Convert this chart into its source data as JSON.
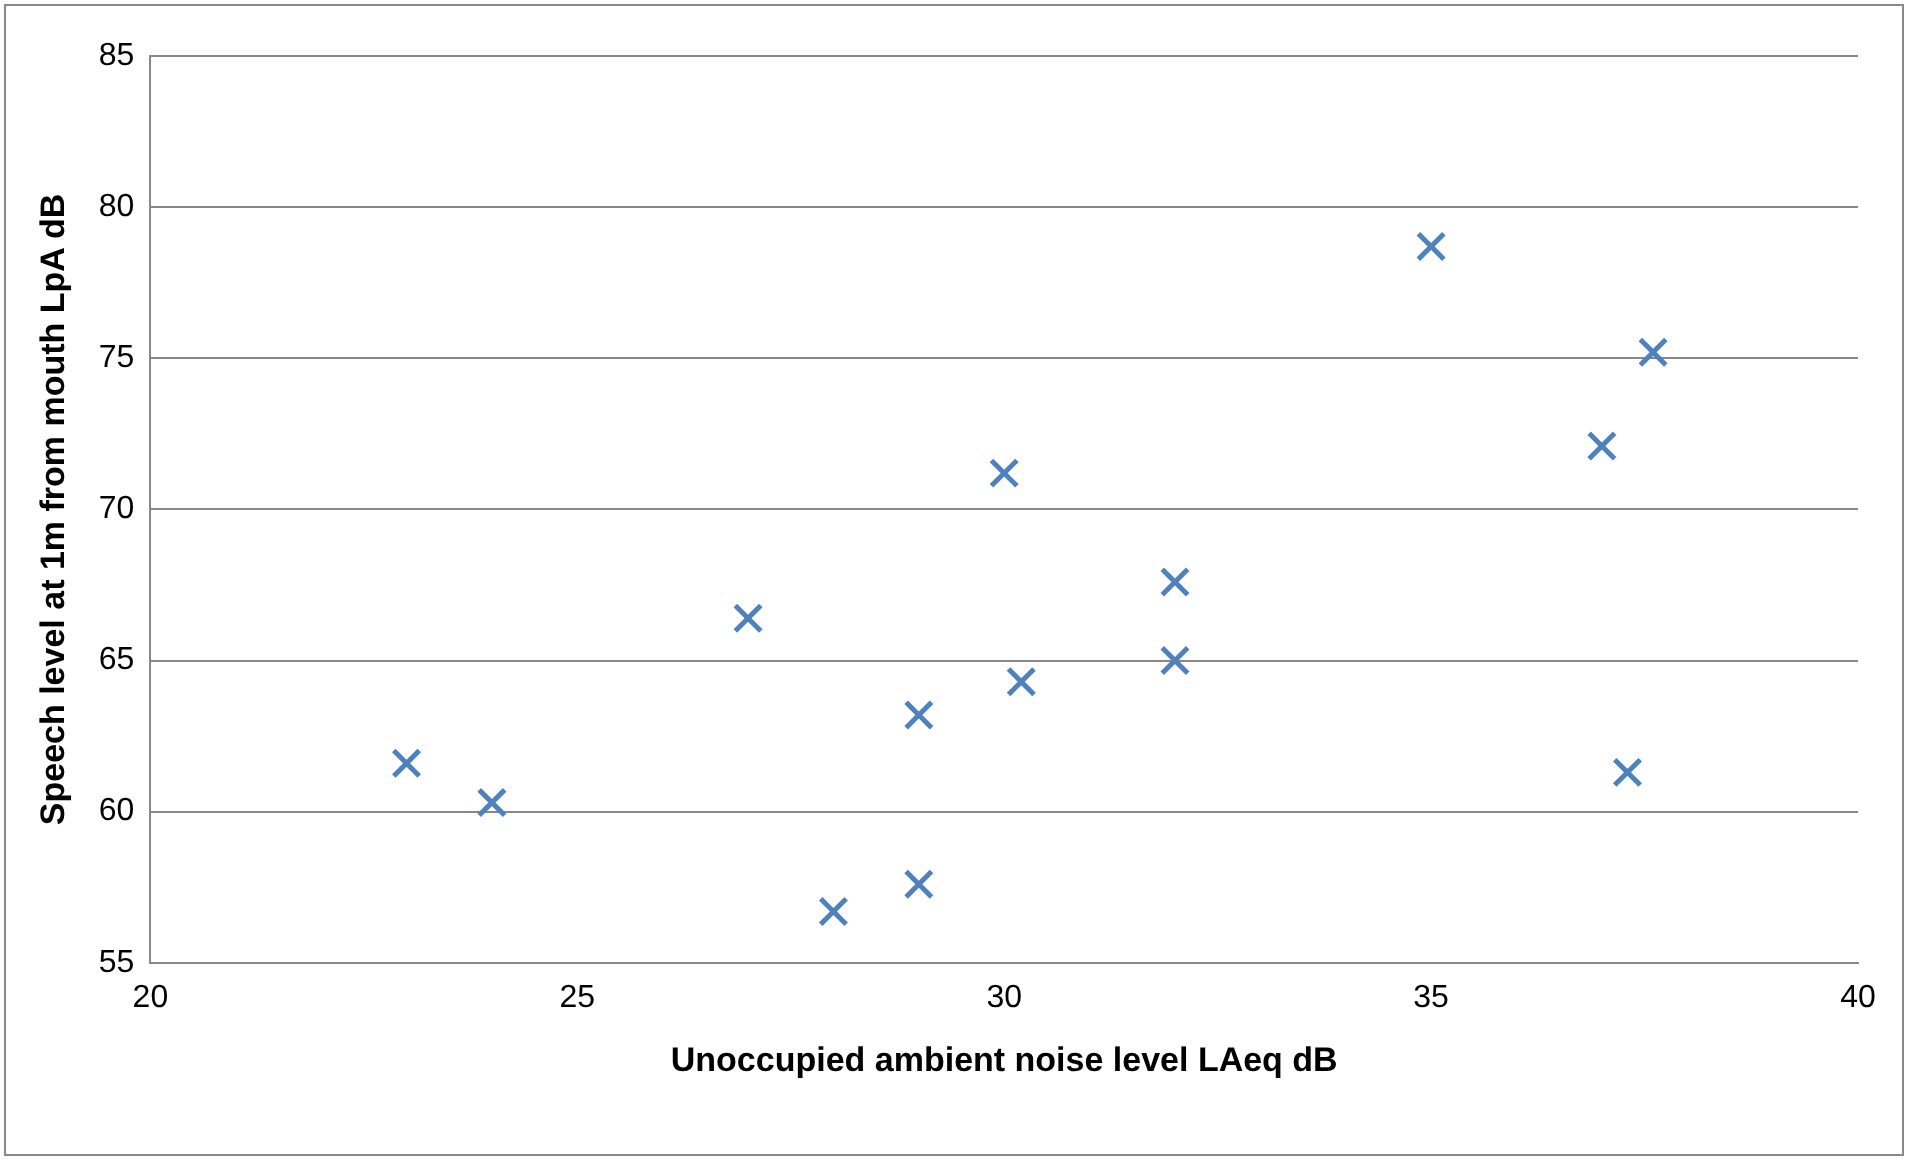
{
  "chart_data": {
    "type": "scatter",
    "xlabel": "Unoccupied ambient noise level LAeq dB",
    "ylabel": "Speech level at 1m from mouth LpA dB",
    "x": [
      23,
      24,
      27,
      28,
      29,
      29,
      30,
      30.2,
      32,
      32,
      35,
      37,
      37.3,
      37.6
    ],
    "series": [
      {
        "color": "#4f81bd",
        "values": [
          61.6,
          60.3,
          66.4,
          56.7,
          63.2,
          57.6,
          71.2,
          64.3,
          67.6,
          65.0,
          78.7,
          72.1,
          61.3,
          75.2
        ]
      }
    ],
    "xlim": [
      20,
      40
    ],
    "xticks": [
      20,
      25,
      30,
      35,
      40
    ],
    "ylim": [
      55,
      85
    ],
    "yticks": [
      55,
      60,
      65,
      70,
      75,
      80,
      85
    ],
    "grid": "y",
    "legend": false,
    "marker": "cross"
  }
}
